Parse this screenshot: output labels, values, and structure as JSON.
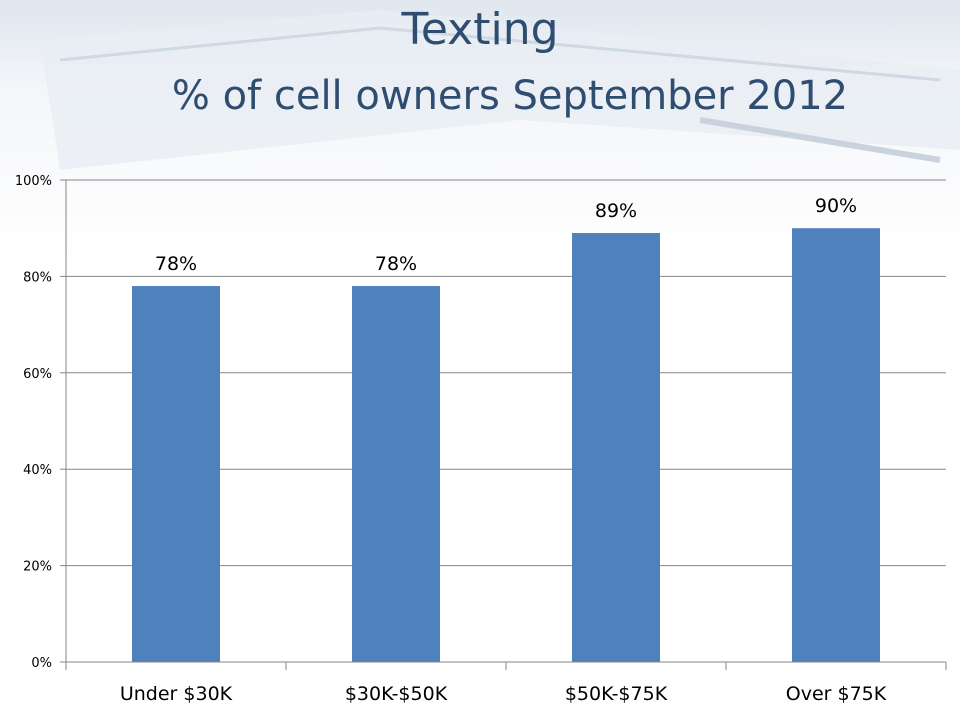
{
  "chart_data": {
    "type": "bar",
    "title": "Texting",
    "subtitle": "% of cell owners September 2012",
    "xlabel": "",
    "ylabel": "",
    "categories": [
      "Under $30K",
      "$30K-$50K",
      "$50K-$75K",
      "Over $75K"
    ],
    "values": [
      78,
      78,
      89,
      90
    ],
    "data_labels": [
      "78%",
      "78%",
      "89%",
      "90%"
    ],
    "ylim": [
      0,
      100
    ],
    "yticks": [
      0,
      20,
      40,
      60,
      80,
      100
    ],
    "ytick_labels": [
      "0%",
      "20%",
      "40%",
      "60%",
      "80%",
      "100%"
    ],
    "grid": "horizontal",
    "legend": "none",
    "bar_color": "#4f81bd"
  }
}
